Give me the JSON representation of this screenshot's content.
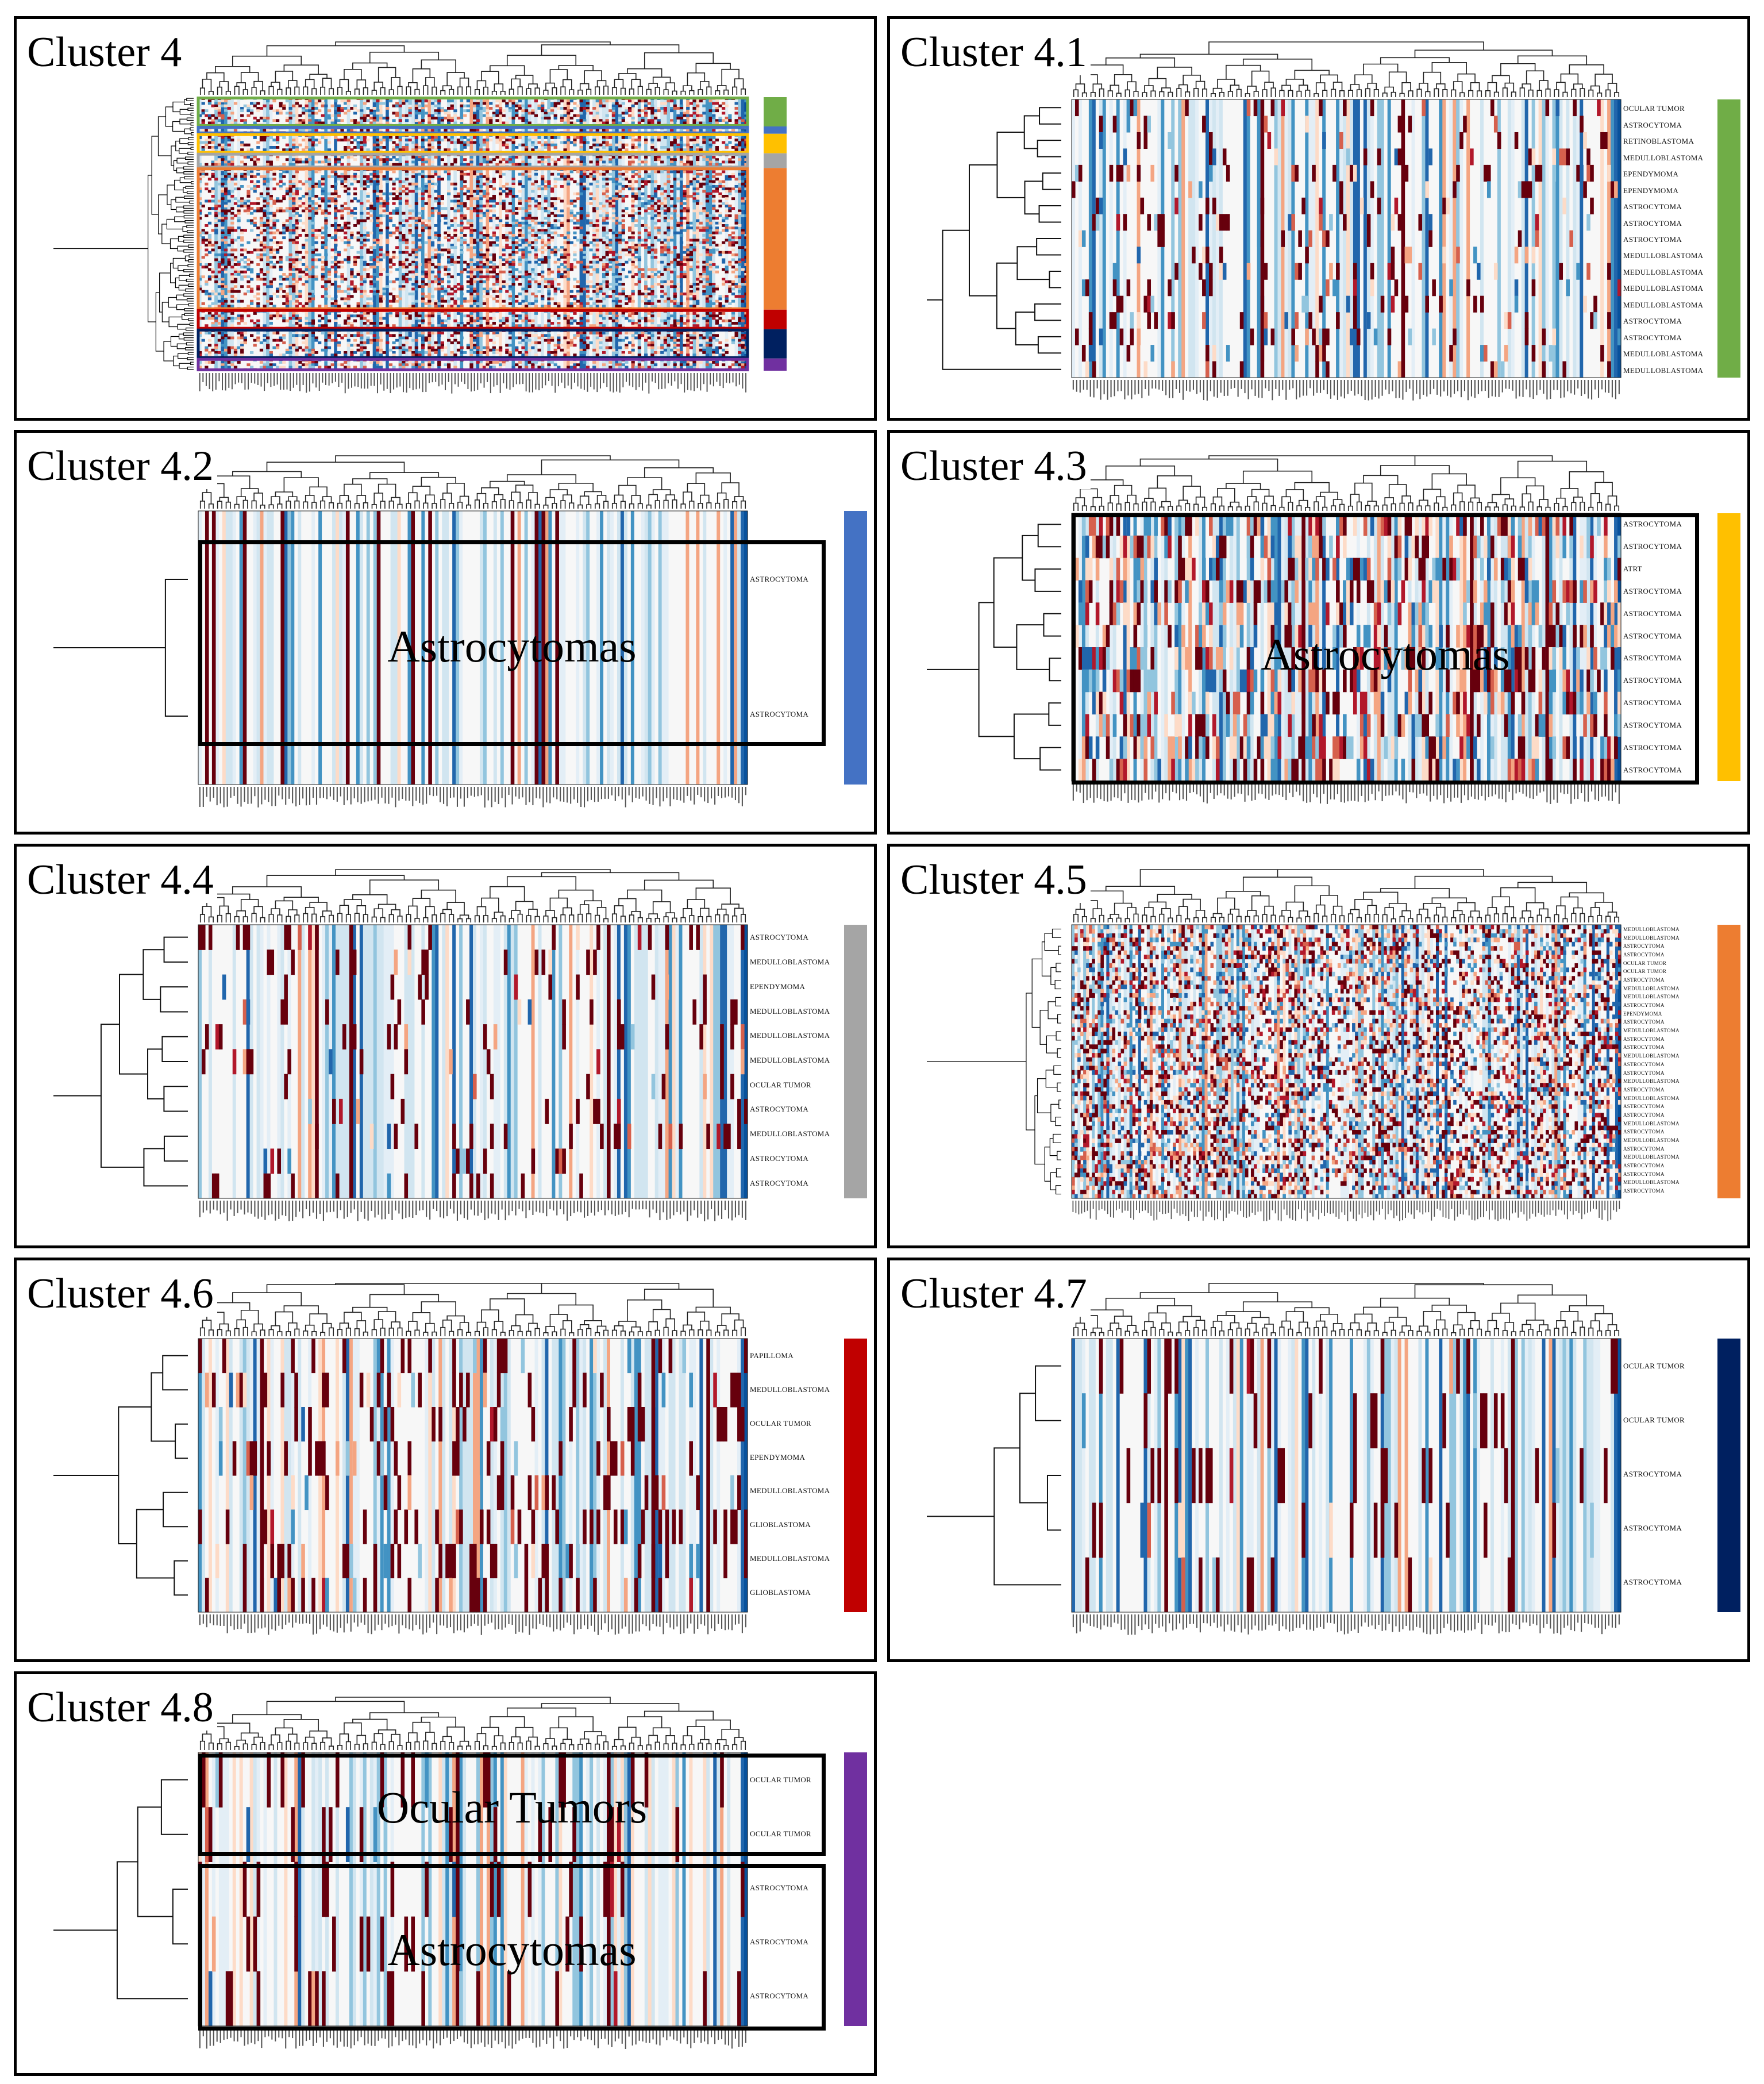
{
  "figure": {
    "description_colors": {
      "low": "#08519c",
      "mid": "#f7f7f7",
      "high": "#67000d",
      "salmon": "#f4a582"
    }
  },
  "chart_data": [
    {
      "id": "c4",
      "type": "heatmap",
      "title": "Cluster 4",
      "row_labels": [],
      "category_colors": [
        "#70ad47",
        "#4472c4",
        "#ffc000",
        "#a5a5a5",
        "#ed7d31",
        "#c00000",
        "#002060",
        "#7030a0"
      ],
      "category_sizes": [
        12,
        3,
        8,
        6,
        58,
        8,
        12,
        5
      ],
      "overlays": []
    },
    {
      "id": "c41",
      "type": "heatmap",
      "title": "Cluster 4.1",
      "row_labels": [
        "OCULAR TUMOR",
        "ASTROCYTOMA",
        "RETINOBLASTOMA",
        "MEDULLOBLASTOMA",
        "EPENDYMOMA",
        "EPENDYMOMA",
        "ASTROCYTOMA",
        "ASTROCYTOMA",
        "ASTROCYTOMA",
        "MEDULLOBLASTOMA",
        "MEDULLOBLASTOMA",
        "MEDULLOBLASTOMA",
        "MEDULLOBLASTOMA",
        "ASTROCYTOMA",
        "ASTROCYTOMA",
        "MEDULLOBLASTOMA",
        "MEDULLOBLASTOMA"
      ],
      "category_color": "#70ad47",
      "overlays": []
    },
    {
      "id": "c42",
      "type": "heatmap",
      "title": "Cluster 4.2",
      "row_labels": [
        "ASTROCYTOMA",
        "ASTROCYTOMA"
      ],
      "category_color": "#4472c4",
      "overlays": [
        {
          "text": "Astrocytomas"
        }
      ]
    },
    {
      "id": "c43",
      "type": "heatmap",
      "title": "Cluster 4.3",
      "row_labels": [
        "ASTROCYTOMA",
        "ASTROCYTOMA",
        "ATRT",
        "ASTROCYTOMA",
        "ASTROCYTOMA",
        "ASTROCYTOMA",
        "ASTROCYTOMA",
        "ASTROCYTOMA",
        "ASTROCYTOMA",
        "ASTROCYTOMA",
        "ASTROCYTOMA",
        "ASTROCYTOMA"
      ],
      "category_color": "#ffc000",
      "overlays": [
        {
          "text": "Astrocytomas"
        }
      ]
    },
    {
      "id": "c44",
      "type": "heatmap",
      "title": "Cluster 4.4",
      "row_labels": [
        "ASTROCYTOMA",
        "MEDULLOBLASTOMA",
        "EPENDYMOMA",
        "MEDULLOBLASTOMA",
        "MEDULLOBLASTOMA",
        "MEDULLOBLASTOMA",
        "OCULAR TUMOR",
        "ASTROCYTOMA",
        "MEDULLOBLASTOMA",
        "ASTROCYTOMA",
        "ASTROCYTOMA"
      ],
      "category_color": "#a5a5a5",
      "overlays": []
    },
    {
      "id": "c45",
      "type": "heatmap",
      "title": "Cluster 4.5",
      "row_labels": [
        "MEDULLOBLASTOMA",
        "MEDULLOBLASTOMA",
        "ASTROCYTOMA",
        "ASTROCYTOMA",
        "OCULAR TUMOR",
        "OCULAR TUMOR",
        "ASTROCYTOMA",
        "MEDULLOBLASTOMA",
        "MEDULLOBLASTOMA",
        "ASTROCYTOMA",
        "EPENDYMOMA",
        "ASTROCYTOMA",
        "MEDULLOBLASTOMA",
        "ASTROCYTOMA",
        "ASTROCYTOMA",
        "MEDULLOBLASTOMA",
        "ASTROCYTOMA",
        "ASTROCYTOMA",
        "MEDULLOBLASTOMA",
        "ASTROCYTOMA",
        "MEDULLOBLASTOMA",
        "ASTROCYTOMA",
        "ASTROCYTOMA",
        "MEDULLOBLASTOMA",
        "ASTROCYTOMA",
        "MEDULLOBLASTOMA",
        "ASTROCYTOMA",
        "MEDULLOBLASTOMA",
        "ASTROCYTOMA",
        "ASTROCYTOMA",
        "MEDULLOBLASTOMA",
        "ASTROCYTOMA"
      ],
      "category_color": "#ed7d31",
      "overlays": []
    },
    {
      "id": "c46",
      "type": "heatmap",
      "title": "Cluster 4.6",
      "row_labels": [
        "PAPILLOMA",
        "MEDULLOBLASTOMA",
        "OCULAR TUMOR",
        "EPENDYMOMA",
        "MEDULLOBLASTOMA",
        "GLIOBLASTOMA",
        "MEDULLOBLASTOMA",
        "GLIOBLASTOMA"
      ],
      "category_color": "#c00000",
      "overlays": []
    },
    {
      "id": "c47",
      "type": "heatmap",
      "title": "Cluster 4.7",
      "row_labels": [
        "OCULAR TUMOR",
        "OCULAR TUMOR",
        "ASTROCYTOMA",
        "ASTROCYTOMA",
        "ASTROCYTOMA"
      ],
      "category_color": "#002060",
      "overlays": []
    },
    {
      "id": "c48",
      "type": "heatmap",
      "title": "Cluster 4.8",
      "row_labels": [
        "OCULAR TUMOR",
        "OCULAR TUMOR",
        "ASTROCYTOMA",
        "ASTROCYTOMA",
        "ASTROCYTOMA"
      ],
      "category_color": "#7030a0",
      "overlays": [
        {
          "text": "Ocular Tumors"
        },
        {
          "text": "Astrocytomas"
        }
      ]
    }
  ]
}
